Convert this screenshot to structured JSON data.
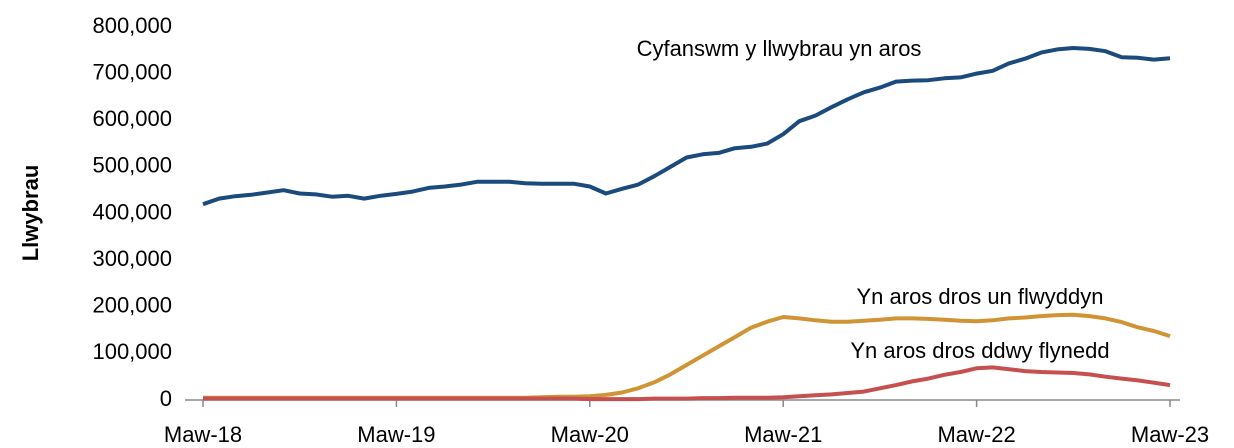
{
  "chart_data": {
    "type": "line",
    "y_label": "Llwybrau",
    "categories": [
      "Maw-18",
      null,
      null,
      null,
      null,
      null,
      null,
      null,
      null,
      null,
      null,
      null,
      "Maw-19",
      null,
      null,
      null,
      null,
      null,
      null,
      null,
      null,
      null,
      null,
      null,
      "Maw-20",
      null,
      null,
      null,
      null,
      null,
      null,
      null,
      null,
      null,
      null,
      null,
      "Maw-21",
      null,
      null,
      null,
      null,
      null,
      null,
      null,
      null,
      null,
      null,
      null,
      "Maw-22",
      null,
      null,
      null,
      null,
      null,
      null,
      null,
      null,
      null,
      null,
      null,
      "Maw-23"
    ],
    "series": [
      {
        "name": "Cyfanswm y llwybrau yn aros",
        "color": "#1b4a7c",
        "values": [
          420000,
          432000,
          437000,
          440000,
          445000,
          450000,
          443000,
          441000,
          436000,
          438000,
          432000,
          438000,
          442000,
          447000,
          455000,
          458000,
          462000,
          468000,
          468000,
          468000,
          465000,
          464000,
          464000,
          464000,
          458000,
          443000,
          453000,
          462000,
          480000,
          500000,
          520000,
          527000,
          530000,
          540000,
          543000,
          550000,
          570000,
          598000,
          610000,
          628000,
          645000,
          660000,
          670000,
          683000,
          685000,
          686000,
          690000,
          692000,
          700000,
          706000,
          722000,
          732000,
          745000,
          752000,
          755000,
          753000,
          748000,
          735000,
          734000,
          730000,
          733000
        ]
      },
      {
        "name": "Yn aros dros un flwyddyn",
        "color": "#d09434",
        "values": [
          5000,
          5000,
          5000,
          5000,
          5000,
          5000,
          5000,
          5000,
          5000,
          5000,
          5000,
          5000,
          5000,
          5000,
          5000,
          5000,
          5000,
          5000,
          5000,
          5000,
          5000,
          6000,
          7000,
          7000,
          8000,
          11000,
          16000,
          25000,
          38000,
          55000,
          75000,
          95000,
          115000,
          135000,
          155000,
          168000,
          178000,
          175000,
          171000,
          168000,
          168000,
          170000,
          172000,
          175000,
          175000,
          174000,
          172000,
          170000,
          169000,
          171000,
          175000,
          177000,
          180000,
          182000,
          183000,
          180000,
          175000,
          167000,
          156000,
          148000,
          137000
        ]
      },
      {
        "name": "Yn aros dros ddwy flynedd",
        "color": "#c5504f",
        "values": [
          3000,
          3000,
          3000,
          3000,
          3000,
          3000,
          3000,
          3000,
          3000,
          3000,
          3000,
          3000,
          3000,
          3000,
          3000,
          3000,
          3000,
          3000,
          3000,
          3000,
          3000,
          3000,
          3000,
          3000,
          2000,
          2000,
          2000,
          2000,
          3000,
          3000,
          3000,
          4000,
          4000,
          5000,
          5000,
          5000,
          6000,
          8000,
          10000,
          12000,
          15000,
          18000,
          25000,
          32000,
          40000,
          46000,
          54000,
          60000,
          68000,
          70000,
          66000,
          62000,
          60000,
          59000,
          58000,
          55000,
          50000,
          46000,
          42000,
          37000,
          32000
        ]
      }
    ],
    "ylim": [
      0,
      800000
    ],
    "yticks": [
      0,
      {
        "value": 100000,
        "label": "100,000"
      },
      {
        "value": 200000,
        "label": "200,000"
      },
      {
        "value": 300000,
        "label": "300,000"
      },
      {
        "value": 400000,
        "label": "400,000"
      },
      {
        "value": 500000,
        "label": "500,000"
      },
      {
        "value": 600000,
        "label": "600,000"
      },
      {
        "value": 700000,
        "label": "700,000"
      },
      {
        "value": 800000,
        "label": "800,000"
      }
    ],
    "grid": false
  }
}
